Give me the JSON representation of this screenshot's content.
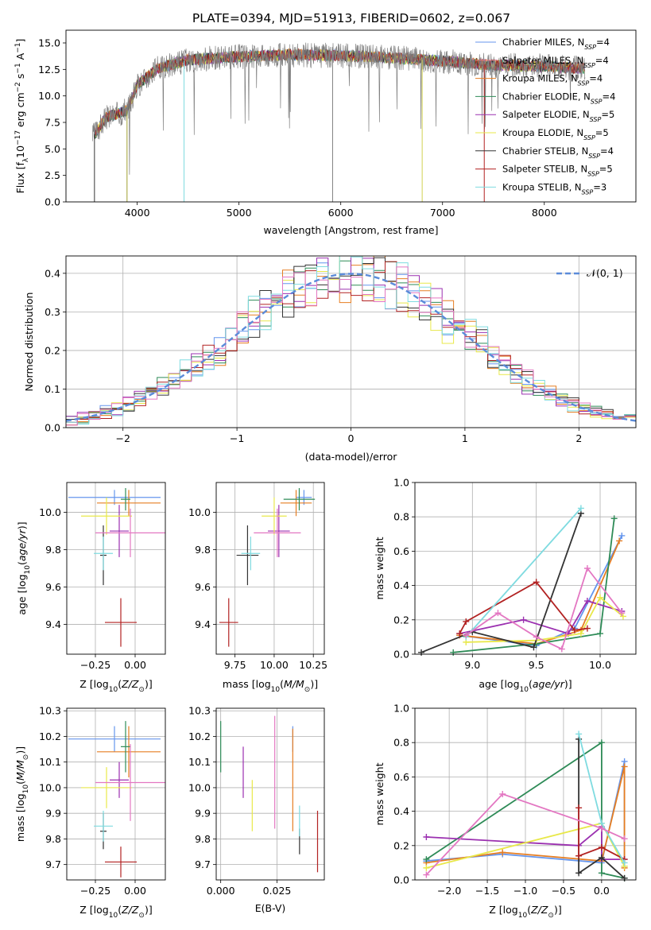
{
  "chart_data": [
    {
      "type": "line",
      "title": "PLATE=0394, MJD=51913, FIBERID=0602, z=0.067",
      "xlabel": "wavelength [Angstrom, rest frame]",
      "ylabel": "Flux [f$_\\lambda$10$^{-17}$ erg cm$^{-2}$ s$^{-1}$ A$^{-1}$]",
      "ylabel_parts": [
        "Flux [f",
        "λ",
        "10",
        "−17",
        " erg cm",
        "−2",
        " s",
        "−1",
        " A",
        "−1",
        "]"
      ],
      "xlim": [
        3300,
        8900
      ],
      "ylim": [
        0,
        16.2
      ],
      "xticks": [
        "4000",
        "5000",
        "6000",
        "7000",
        "8000"
      ],
      "yticks": [
        "0.0",
        "2.5",
        "5.0",
        "7.5",
        "10.0",
        "12.5",
        "15.0"
      ],
      "legend_position": "upper-right",
      "series": [
        {
          "name": "Chabrier MILES, N$_{SSP}$=4",
          "label": "Chabrier MILES",
          "nssp": "4",
          "color": "#6495ed"
        },
        {
          "name": "Salpeter MILES, N$_{SSP}$=4",
          "label": "Salpeter MILES",
          "nssp": "4",
          "color": "#f08080"
        },
        {
          "name": "Kroupa MILES, N$_{SSP}$=4",
          "label": "Kroupa MILES",
          "nssp": "4",
          "color": "#e67e22"
        },
        {
          "name": "Chabrier ELODIE, N$_{SSP}$=4",
          "label": "Chabrier ELODIE",
          "nssp": "4",
          "color": "#2e8b57"
        },
        {
          "name": "Salpeter ELODIE, N$_{SSP}$=5",
          "label": "Salpeter ELODIE",
          "nssp": "5",
          "color": "#9b30b0"
        },
        {
          "name": "Kroupa ELODIE, N$_{SSP}$=5",
          "label": "Kroupa ELODIE",
          "nssp": "5",
          "color": "#e8e84a"
        },
        {
          "name": "Chabrier STELIB, N$_{SSP}$=4",
          "label": "Chabrier STELIB",
          "nssp": "4",
          "color": "#333333"
        },
        {
          "name": "Salpeter STELIB, N$_{SSP}$=5",
          "label": "Salpeter STELIB",
          "nssp": "5",
          "color": "#b22222"
        },
        {
          "name": "Kroupa STELIB, N$_{SSP}$=3",
          "label": "Kroupa STELIB",
          "nssp": "3",
          "color": "#7fdbe0"
        }
      ],
      "data_spectrum_color": "#808080",
      "continuum_points": [
        [
          3550,
          6.0
        ],
        [
          3700,
          8.0
        ],
        [
          3900,
          8.6
        ],
        [
          4000,
          11.0
        ],
        [
          4200,
          12.6
        ],
        [
          4500,
          13.4
        ],
        [
          5000,
          13.7
        ],
        [
          5500,
          13.9
        ],
        [
          6000,
          13.8
        ],
        [
          6500,
          13.6
        ],
        [
          7000,
          13.3
        ],
        [
          7500,
          12.9
        ],
        [
          8000,
          12.8
        ],
        [
          8400,
          12.6
        ]
      ]
    },
    {
      "type": "area",
      "xlabel": "(data-model)/error",
      "ylabel": "Normed distribution",
      "xlim": [
        -2.5,
        2.5
      ],
      "ylim": [
        0,
        0.445
      ],
      "xticks": [
        "−2",
        "−1",
        "0",
        "1",
        "2"
      ],
      "yticks": [
        "0.0",
        "0.1",
        "0.2",
        "0.3",
        "0.4"
      ],
      "grid": true,
      "legend_position": "upper-right",
      "reference_curve": {
        "name": "$\\mathcal{N}(0, 1)$",
        "label": "𝒩(0, 1)",
        "color": "#5b8bd9"
      },
      "bin_width": 0.1,
      "series_colors": [
        "#6495ed",
        "#e67e22",
        "#2e8b57",
        "#9b30b0",
        "#e8e84a",
        "#333333",
        "#b22222",
        "#7fdbe0",
        "#e377c2"
      ]
    },
    {
      "type": "scatter",
      "xlabel": "Z [log$_{10}$(Z/Z$_\\odot$)]",
      "ylabel": "age  [log$_{10}$(age/yr)]",
      "xticks": [
        "−0.25",
        "0.00"
      ],
      "yticks": [
        "9.4",
        "9.6",
        "9.8",
        "10.0"
      ],
      "grid": true,
      "points": [
        {
          "color": "#6495ed",
          "x": -0.13,
          "xerr": 0.29,
          "y": 10.08,
          "yerr": 0.04
        },
        {
          "color": "#e67e22",
          "x": -0.04,
          "xerr": 0.2,
          "y": 10.05,
          "yerr": 0.07
        },
        {
          "color": "#2e8b57",
          "x": -0.06,
          "xerr": 0.03,
          "y": 10.07,
          "yerr": 0.06
        },
        {
          "color": "#9b30b0",
          "x": -0.1,
          "xerr": 0.06,
          "y": 9.9,
          "yerr": 0.14
        },
        {
          "color": "#e8e84a",
          "x": -0.18,
          "xerr": 0.16,
          "y": 9.98,
          "yerr": 0.1
        },
        {
          "color": "#333333",
          "x": -0.2,
          "xerr": 0.02,
          "y": 9.77,
          "yerr": 0.16
        },
        {
          "color": "#b22222",
          "x": -0.09,
          "xerr": 0.1,
          "y": 9.41,
          "yerr": 0.13
        },
        {
          "color": "#7fdbe0",
          "x": -0.2,
          "xerr": 0.06,
          "y": 9.78,
          "yerr": 0.09
        },
        {
          "color": "#e377c2",
          "x": -0.03,
          "xerr": 0.22,
          "y": 9.89,
          "yerr": 0.13
        }
      ]
    },
    {
      "type": "scatter",
      "xlabel": "mass [log$_{10}$(M/M$_\\odot$)]",
      "ylabel": "",
      "xticks": [
        "9.75",
        "10.00",
        "10.25"
      ],
      "yticks": [
        "9.4",
        "9.6",
        "9.8",
        "10.0"
      ],
      "grid": true,
      "points": [
        {
          "color": "#6495ed",
          "x": 10.19,
          "xerr": 0.05,
          "y": 10.08,
          "yerr": 0.04
        },
        {
          "color": "#e67e22",
          "x": 10.14,
          "xerr": 0.1,
          "y": 10.05,
          "yerr": 0.07
        },
        {
          "color": "#2e8b57",
          "x": 10.16,
          "xerr": 0.1,
          "y": 10.07,
          "yerr": 0.06
        },
        {
          "color": "#9b30b0",
          "x": 10.03,
          "xerr": 0.07,
          "y": 9.9,
          "yerr": 0.14
        },
        {
          "color": "#e8e84a",
          "x": 10.0,
          "xerr": 0.08,
          "y": 9.98,
          "yerr": 0.1
        },
        {
          "color": "#333333",
          "x": 9.83,
          "xerr": 0.07,
          "y": 9.77,
          "yerr": 0.16
        },
        {
          "color": "#b22222",
          "x": 9.71,
          "xerr": 0.06,
          "y": 9.41,
          "yerr": 0.13
        },
        {
          "color": "#7fdbe0",
          "x": 9.85,
          "xerr": 0.06,
          "y": 9.78,
          "yerr": 0.09
        },
        {
          "color": "#e377c2",
          "x": 10.02,
          "xerr": 0.15,
          "y": 9.89,
          "yerr": 0.13
        }
      ]
    },
    {
      "type": "line",
      "xlabel": "age  [log$_{10}$(age/yr)]",
      "ylabel": "mass weight",
      "xlim": [
        8.55,
        10.28
      ],
      "ylim": [
        0,
        1.0
      ],
      "xticks": [
        "9.0",
        "9.5",
        "10.0"
      ],
      "yticks": [
        "0.0",
        "0.2",
        "0.4",
        "0.6",
        "0.8",
        "1.0"
      ],
      "grid": true,
      "series": [
        {
          "color": "#6495ed",
          "points": [
            [
              8.9,
              0.11
            ],
            [
              9.5,
              0.05
            ],
            [
              9.8,
              0.15
            ],
            [
              10.17,
              0.69
            ]
          ]
        },
        {
          "color": "#e67e22",
          "points": [
            [
              8.9,
              0.11
            ],
            [
              9.5,
              0.06
            ],
            [
              9.85,
              0.14
            ],
            [
              10.15,
              0.66
            ]
          ]
        },
        {
          "color": "#2e8b57",
          "points": [
            [
              8.85,
              0.01
            ],
            [
              9.5,
              0.06
            ],
            [
              10.0,
              0.12
            ],
            [
              10.11,
              0.79
            ]
          ]
        },
        {
          "color": "#9b30b0",
          "points": [
            [
              8.9,
              0.12
            ],
            [
              9.4,
              0.2
            ],
            [
              9.75,
              0.12
            ],
            [
              9.9,
              0.31
            ],
            [
              10.17,
              0.25
            ]
          ]
        },
        {
          "color": "#e8e84a",
          "points": [
            [
              8.95,
              0.07
            ],
            [
              9.5,
              0.08
            ],
            [
              9.85,
              0.12
            ],
            [
              10.0,
              0.33
            ],
            [
              10.18,
              0.22
            ]
          ]
        },
        {
          "color": "#333333",
          "points": [
            [
              8.6,
              0.01
            ],
            [
              9.0,
              0.13
            ],
            [
              9.48,
              0.04
            ],
            [
              9.85,
              0.82
            ]
          ]
        },
        {
          "color": "#b22222",
          "points": [
            [
              8.9,
              0.12
            ],
            [
              8.95,
              0.19
            ],
            [
              9.5,
              0.42
            ],
            [
              9.8,
              0.14
            ],
            [
              9.9,
              0.15
            ]
          ]
        },
        {
          "color": "#7fdbe0",
          "points": [
            [
              8.95,
              0.1
            ],
            [
              9.85,
              0.85
            ]
          ]
        },
        {
          "color": "#e377c2",
          "points": [
            [
              8.95,
              0.11
            ],
            [
              9.2,
              0.24
            ],
            [
              9.5,
              0.1
            ],
            [
              9.7,
              0.03
            ],
            [
              9.9,
              0.5
            ],
            [
              10.17,
              0.24
            ]
          ]
        }
      ]
    },
    {
      "type": "scatter",
      "xlabel": "Z [log$_{10}$(Z/Z$_\\odot$)]",
      "ylabel": "mass [log$_{10}$(M/M$_\\odot$)]",
      "xticks": [
        "−0.25",
        "0.00"
      ],
      "yticks": [
        "9.7",
        "9.8",
        "9.9",
        "10.0",
        "10.1",
        "10.2",
        "10.3"
      ],
      "grid": true,
      "points": [
        {
          "color": "#6495ed",
          "x": -0.13,
          "xerr": 0.29,
          "y": 10.19,
          "yerr": 0.05
        },
        {
          "color": "#e67e22",
          "x": -0.04,
          "xerr": 0.2,
          "y": 10.14,
          "yerr": 0.1
        },
        {
          "color": "#2e8b57",
          "x": -0.06,
          "xerr": 0.03,
          "y": 10.16,
          "yerr": 0.1
        },
        {
          "color": "#9b30b0",
          "x": -0.1,
          "xerr": 0.06,
          "y": 10.03,
          "yerr": 0.07
        },
        {
          "color": "#e8e84a",
          "x": -0.18,
          "xerr": 0.16,
          "y": 10.0,
          "yerr": 0.08
        },
        {
          "color": "#333333",
          "x": -0.2,
          "xerr": 0.02,
          "y": 9.83,
          "yerr": 0.07
        },
        {
          "color": "#b22222",
          "x": -0.09,
          "xerr": 0.1,
          "y": 9.71,
          "yerr": 0.06
        },
        {
          "color": "#7fdbe0",
          "x": -0.2,
          "xerr": 0.06,
          "y": 9.85,
          "yerr": 0.06
        },
        {
          "color": "#e377c2",
          "x": -0.03,
          "xerr": 0.22,
          "y": 10.02,
          "yerr": 0.15
        }
      ]
    },
    {
      "type": "scatter",
      "xlabel": "E(B-V)",
      "ylabel": "",
      "xlim": [
        -0.002,
        0.046
      ],
      "xticks": [
        "0.000",
        "0.025"
      ],
      "yticks": [
        "9.7",
        "9.8",
        "9.9",
        "10.0",
        "10.1",
        "10.2",
        "10.3"
      ],
      "grid": true,
      "points": [
        {
          "color": "#6495ed",
          "x": 0.032,
          "y": 10.19,
          "yerr": 0.05
        },
        {
          "color": "#e67e22",
          "x": 0.032,
          "y": 10.03,
          "yerr": 0.2
        },
        {
          "color": "#2e8b57",
          "x": 0.0,
          "y": 10.16,
          "yerr": 0.1
        },
        {
          "color": "#9b30b0",
          "x": 0.01,
          "y": 10.06,
          "yerr": 0.1
        },
        {
          "color": "#e8e84a",
          "x": 0.014,
          "y": 9.93,
          "yerr": 0.1
        },
        {
          "color": "#333333",
          "x": 0.035,
          "y": 9.79,
          "yerr": 0.05
        },
        {
          "color": "#b22222",
          "x": 0.043,
          "y": 9.79,
          "yerr": 0.12
        },
        {
          "color": "#7fdbe0",
          "x": 0.035,
          "y": 9.87,
          "yerr": 0.06
        },
        {
          "color": "#e377c2",
          "x": 0.024,
          "y": 10.06,
          "yerr": 0.22
        }
      ]
    },
    {
      "type": "line",
      "xlabel": "Z [log$_{10}$(Z/Z$_\\odot$)]",
      "ylabel": "mass weight",
      "xlim": [
        -2.45,
        0.45
      ],
      "ylim": [
        0,
        1.0
      ],
      "xticks": [
        "−2.0",
        "−1.5",
        "−1.0",
        "−0.5",
        "0.0"
      ],
      "yticks": [
        "0.0",
        "0.2",
        "0.4",
        "0.6",
        "0.8",
        "1.0"
      ],
      "grid": true,
      "series": [
        {
          "color": "#6495ed",
          "points": [
            [
              -2.3,
              0.11
            ],
            [
              -1.3,
              0.15
            ],
            [
              0.0,
              0.1
            ],
            [
              0.3,
              0.69
            ],
            [
              0.3,
              0.08
            ]
          ]
        },
        {
          "color": "#e67e22",
          "points": [
            [
              -2.3,
              0.1
            ],
            [
              -1.3,
              0.16
            ],
            [
              0.0,
              0.11
            ],
            [
              0.3,
              0.66
            ],
            [
              0.3,
              0.07
            ]
          ]
        },
        {
          "color": "#2e8b57",
          "points": [
            [
              -2.3,
              0.12
            ],
            [
              0.0,
              0.8
            ],
            [
              0.0,
              0.04
            ],
            [
              0.3,
              0.01
            ]
          ]
        },
        {
          "color": "#9b30b0",
          "points": [
            [
              -2.3,
              0.25
            ],
            [
              -0.3,
              0.2
            ],
            [
              0.0,
              0.31
            ],
            [
              0.0,
              0.12
            ],
            [
              0.3,
              0.12
            ]
          ]
        },
        {
          "color": "#e8e84a",
          "points": [
            [
              -2.3,
              0.07
            ],
            [
              0.0,
              0.33
            ],
            [
              0.3,
              0.08
            ]
          ]
        },
        {
          "color": "#333333",
          "points": [
            [
              -0.3,
              0.82
            ],
            [
              -0.3,
              0.04
            ],
            [
              0.0,
              0.13
            ],
            [
              0.3,
              0.01
            ]
          ]
        },
        {
          "color": "#b22222",
          "points": [
            [
              -0.3,
              0.42
            ],
            [
              -0.3,
              0.14
            ],
            [
              0.0,
              0.19
            ],
            [
              0.3,
              0.12
            ]
          ]
        },
        {
          "color": "#7fdbe0",
          "points": [
            [
              -0.3,
              0.85
            ],
            [
              0.0,
              0.33
            ],
            [
              0.3,
              0.1
            ]
          ]
        },
        {
          "color": "#e377c2",
          "points": [
            [
              -2.3,
              0.03
            ],
            [
              -1.3,
              0.5
            ],
            [
              0.0,
              0.3
            ],
            [
              0.3,
              0.24
            ]
          ]
        }
      ]
    }
  ]
}
